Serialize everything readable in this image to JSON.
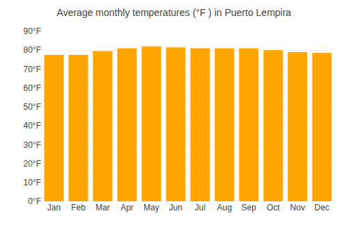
{
  "chart_data": {
    "type": "bar",
    "title": "Average monthly temperatures (°F ) in Puerto Lempira",
    "categories": [
      "Jan",
      "Feb",
      "Mar",
      "Apr",
      "May",
      "Jun",
      "Jul",
      "Aug",
      "Sep",
      "Oct",
      "Nov",
      "Dec"
    ],
    "values": [
      77.5,
      77.5,
      79.5,
      81.0,
      82.0,
      81.5,
      81.0,
      81.0,
      81.0,
      80.0,
      79.0,
      78.5
    ],
    "color": "#FFA500",
    "ylim": [
      0,
      90
    ],
    "yticks": [
      {
        "value": 0,
        "label": "0°F"
      },
      {
        "value": 10,
        "label": "10°F"
      },
      {
        "value": 20,
        "label": "20°F"
      },
      {
        "value": 30,
        "label": "30°F"
      },
      {
        "value": 40,
        "label": "40°F"
      },
      {
        "value": 50,
        "label": "50°F"
      },
      {
        "value": 60,
        "label": "60°F"
      },
      {
        "value": 70,
        "label": "70°F"
      },
      {
        "value": 80,
        "label": "80°F"
      },
      {
        "value": 90,
        "label": "90°F"
      }
    ],
    "grid": true
  }
}
